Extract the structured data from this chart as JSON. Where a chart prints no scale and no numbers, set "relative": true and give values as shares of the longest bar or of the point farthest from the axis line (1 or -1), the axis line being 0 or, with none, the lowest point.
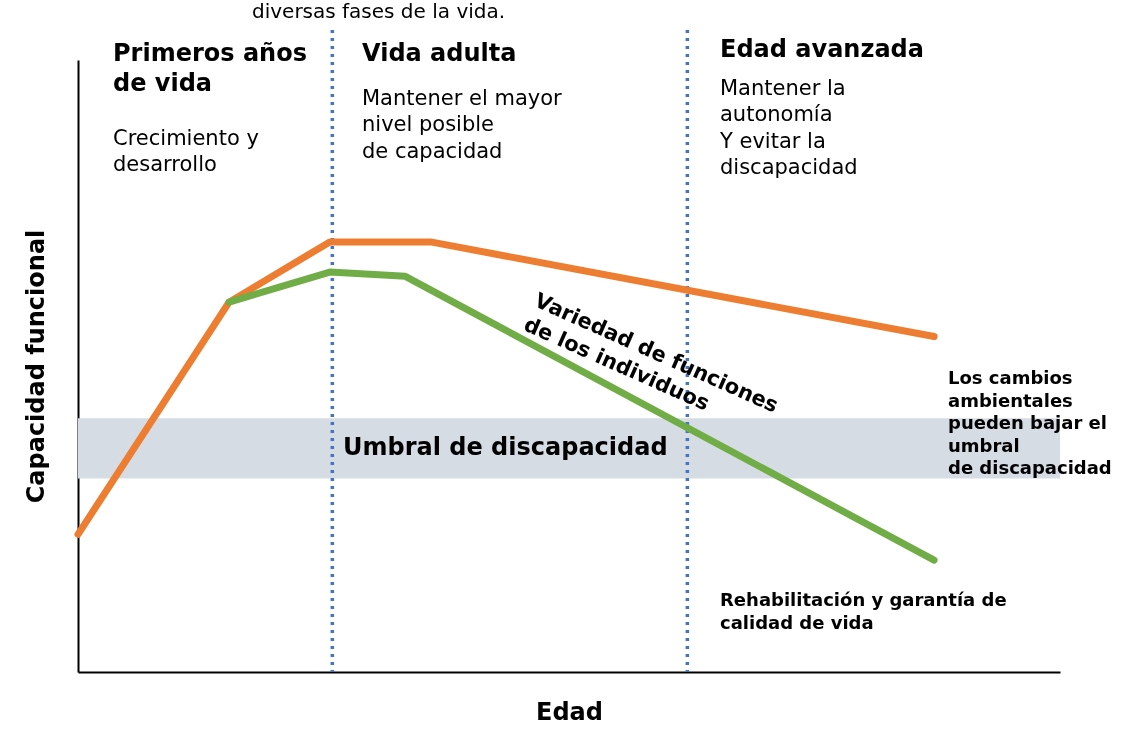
{
  "chart_data": {
    "type": "line",
    "title": "diversas fases de la vida.",
    "xlabel": "Edad",
    "ylabel": "Capacidad funcional",
    "relative": true,
    "categories": [
      null,
      null,
      null,
      null,
      null,
      null,
      null,
      null,
      null,
      null,
      null,
      null,
      null,
      null,
      null,
      null,
      null,
      null,
      null,
      null,
      null,
      null,
      null,
      null,
      null,
      null,
      null,
      null,
      null,
      null,
      null,
      null,
      null,
      null,
      null,
      null,
      null,
      null,
      null,
      null
    ],
    "marker": "none",
    "line_style": "solid",
    "series": [
      {
        "color": "#ed7d31",
        "values": [
          0.32,
          null,
          null,
          null,
          null,
          null,
          0.86,
          null,
          null,
          null,
          1,
          null,
          null,
          null,
          1,
          null,
          null,
          null,
          null,
          null,
          null,
          null,
          null,
          null,
          null,
          null,
          null,
          null,
          null,
          null,
          null,
          null,
          null,
          null,
          0.78,
          null,
          null,
          null,
          null,
          null
        ]
      },
      {
        "color": "#70ad47",
        "values": [
          null,
          null,
          null,
          null,
          null,
          null,
          0.86,
          null,
          null,
          null,
          0.93,
          null,
          null,
          0.92,
          null,
          null,
          null,
          null,
          null,
          null,
          null,
          null,
          null,
          null,
          null,
          null,
          null,
          null,
          null,
          null,
          null,
          null,
          null,
          null,
          0.26,
          null,
          null,
          null,
          null,
          null
        ]
      }
    ],
    "bands": [
      {
        "axis": "y",
        "from": 0.45,
        "to": 0.59,
        "label": "Umbral de discapacidad",
        "color": "#d6dce4"
      }
    ],
    "annotations": [
      "Primeros años\nde vida",
      "Crecimiento y\ndesarrollo",
      "Vida adulta",
      "Mantener el mayor\nnivel posible\nde capacidad",
      "Edad avanzada",
      "Mantener la\nautonomía\nY evitar la\ndiscapacidad",
      "Variedad de funciones\nde los individuos",
      "Los cambios\nambientales\npueden bajar el\numbral\nde discapacidad",
      "Rehabilitación y garantía de\ncalidad de vida"
    ]
  }
}
